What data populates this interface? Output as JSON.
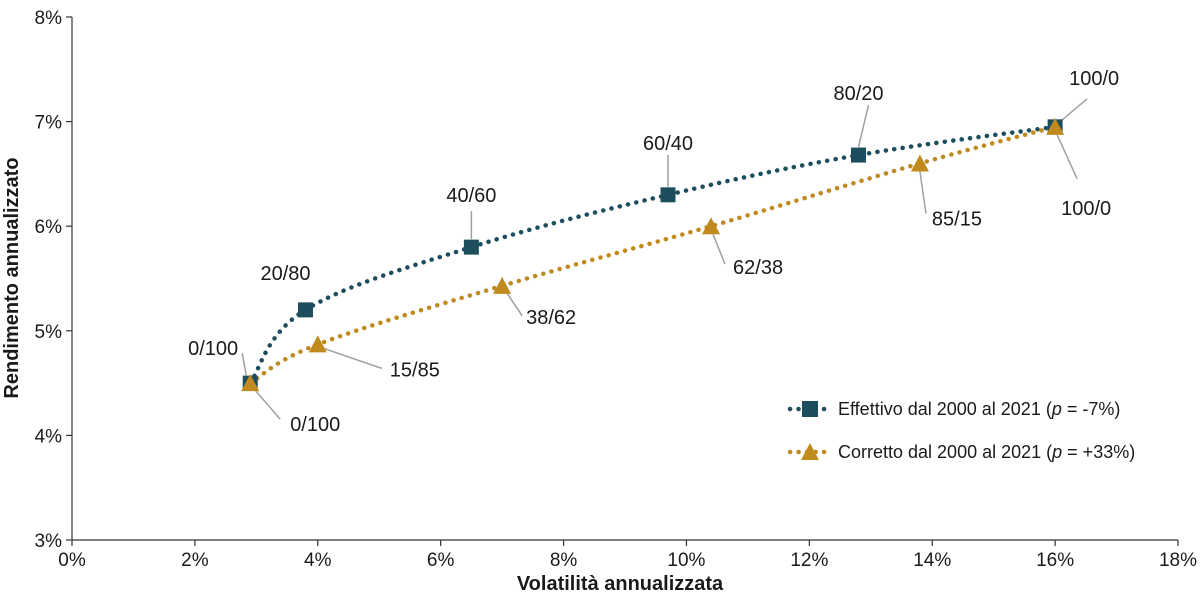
{
  "chart_data": {
    "type": "line",
    "xlabel": "Volatilità annualizzata",
    "ylabel": "Rendimento annualizzato",
    "xlim": [
      0,
      18
    ],
    "ylim": [
      3,
      8
    ],
    "x_ticks": [
      "0%",
      "2%",
      "4%",
      "6%",
      "8%",
      "10%",
      "12%",
      "14%",
      "16%",
      "18%"
    ],
    "y_ticks": [
      "3%",
      "4%",
      "5%",
      "6%",
      "7%",
      "8%"
    ],
    "grid": false,
    "legend_position": "bottom-right",
    "series": [
      {
        "name": "Effettivo dal 2000 al 2021",
        "name_suffix": " (",
        "rho_symbol": "p",
        "rho_value": " = -7%)",
        "color": "#1d4e5e",
        "marker": "square",
        "points": [
          {
            "x": 2.9,
            "y": 4.5,
            "label": "0/100"
          },
          {
            "x": 3.8,
            "y": 5.2,
            "label": "20/80"
          },
          {
            "x": 6.5,
            "y": 5.8,
            "label": "40/60"
          },
          {
            "x": 9.7,
            "y": 6.3,
            "label": "60/40"
          },
          {
            "x": 12.8,
            "y": 6.68,
            "label": "80/20"
          },
          {
            "x": 16.0,
            "y": 6.95,
            "label": "100/0"
          }
        ]
      },
      {
        "name": "Corretto dal 2000 al 2021",
        "name_suffix": " (",
        "rho_symbol": "p",
        "rho_value": " = +33%)",
        "color": "#c08a1e",
        "marker": "triangle",
        "points": [
          {
            "x": 2.9,
            "y": 4.5,
            "label": "0/100"
          },
          {
            "x": 4.0,
            "y": 4.87,
            "label": "15/85"
          },
          {
            "x": 7.0,
            "y": 5.43,
            "label": "38/62"
          },
          {
            "x": 10.4,
            "y": 6.0,
            "label": "62/38"
          },
          {
            "x": 13.8,
            "y": 6.6,
            "label": "85/15"
          },
          {
            "x": 16.0,
            "y": 6.95,
            "label": "100/0"
          }
        ]
      }
    ]
  }
}
